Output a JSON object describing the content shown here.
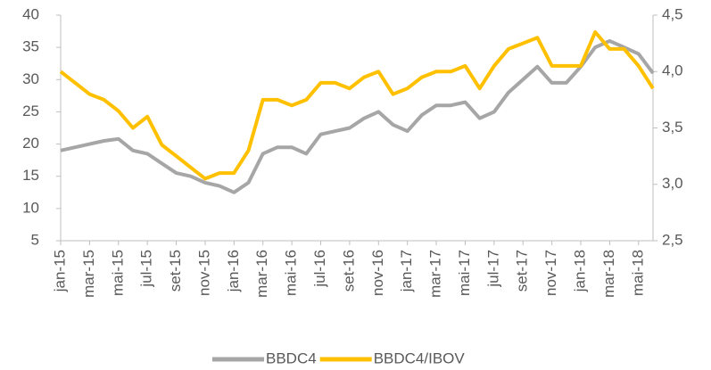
{
  "chart_data": {
    "type": "line",
    "categories": [
      "jan-15",
      null,
      "mar-15",
      null,
      "mai-15",
      null,
      "jul-15",
      null,
      "set-15",
      null,
      "nov-15",
      null,
      "jan-16",
      null,
      "mar-16",
      null,
      "mai-16",
      null,
      "jul-16",
      null,
      "set-16",
      null,
      "nov-16",
      null,
      "jan-17",
      null,
      "mar-17",
      null,
      "mai-17",
      null,
      "jul-17",
      null,
      "set-17",
      null,
      "nov-17",
      null,
      "jan-18",
      null,
      "mar-18",
      null,
      "mai-18",
      null
    ],
    "series": [
      {
        "name": "BBDC4",
        "color": "#a6a6a6",
        "axis": "y",
        "values": [
          19,
          19.5,
          20,
          20.5,
          20.8,
          19,
          18.5,
          17,
          15.5,
          15,
          14,
          13.5,
          12.5,
          14,
          18.5,
          19.5,
          19.5,
          18.5,
          21.5,
          22,
          22.5,
          24,
          25,
          23,
          22,
          24.5,
          26,
          26,
          26.5,
          24,
          25,
          28,
          30,
          32,
          29.5,
          29.5,
          32,
          35,
          36,
          35,
          34,
          31
        ]
      },
      {
        "name": "BBDC4/IBOV",
        "color": "#ffc000",
        "axis": "y2",
        "values": [
          4.0,
          3.9,
          3.8,
          3.75,
          3.65,
          3.5,
          3.6,
          3.35,
          3.25,
          3.15,
          3.05,
          3.1,
          3.1,
          3.3,
          3.75,
          3.75,
          3.7,
          3.75,
          3.9,
          3.9,
          3.85,
          3.95,
          4.0,
          3.8,
          3.85,
          3.95,
          4.0,
          4.0,
          4.05,
          3.85,
          4.05,
          4.2,
          4.25,
          4.3,
          4.05,
          4.05,
          4.05,
          4.35,
          4.2,
          4.2,
          4.05,
          3.85
        ]
      }
    ],
    "ylim": [
      5,
      40
    ],
    "yticks": [
      5,
      10,
      15,
      20,
      25,
      30,
      35,
      40
    ],
    "y2lim": [
      2.5,
      4.5
    ],
    "y2ticks": [
      {
        "value": 2.5,
        "label": "2,5"
      },
      {
        "value": 3.0,
        "label": "3,0"
      },
      {
        "value": 3.5,
        "label": "3,5"
      },
      {
        "value": 4.0,
        "label": "4,0"
      },
      {
        "value": 4.5,
        "label": "4,5"
      }
    ],
    "legend": "bottom"
  }
}
